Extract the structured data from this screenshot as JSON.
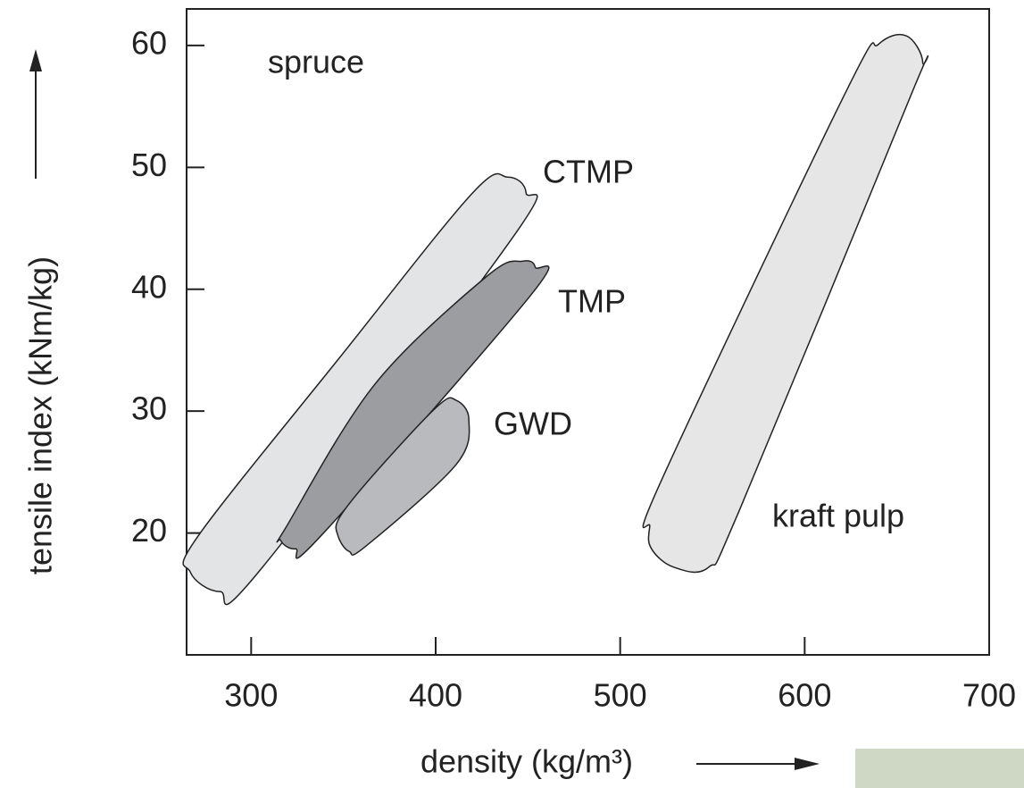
{
  "chart_data": {
    "type": "region",
    "title": "spruce",
    "x_label": "density (kg/m³)",
    "y_label": "tensile index (kNm/kg)",
    "xlim": [
      265,
      700
    ],
    "ylim": [
      10,
      63
    ],
    "xticks": [
      300,
      400,
      500,
      600,
      700
    ],
    "yticks": [
      20,
      30,
      40,
      50,
      60
    ],
    "grid": false,
    "series": [
      {
        "name": "CTMP",
        "color": "#e3e4e6",
        "x": [
          267,
          283,
          304,
          442,
          449,
          439,
          420,
          348,
          271
        ],
        "y": [
          16.8,
          15.2,
          16.8,
          44.3,
          47.9,
          49.2,
          47.9,
          34.4,
          19.7
        ]
      },
      {
        "name": "TMP",
        "color": "#9c9da1",
        "x": [
          316,
          324,
          338,
          452,
          454,
          447,
          428,
          367,
          319
        ],
        "y": [
          19.4,
          18.7,
          19.8,
          39.6,
          41.8,
          42.3,
          41.1,
          32.2,
          20.5
        ]
      },
      {
        "name": "GWD",
        "color": "#b9babd",
        "x": [
          347,
          353,
          362,
          411,
          418,
          411,
          401,
          367,
          348
        ],
        "y": [
          19.8,
          18.5,
          18.9,
          25.6,
          29.3,
          30.9,
          30.4,
          24.9,
          21.3
        ]
      },
      {
        "name": "kraft pulp",
        "color": "#e6e6e6",
        "x": [
          517,
          529,
          548,
          565,
          657,
          664,
          655,
          640,
          623,
          522,
          516
        ],
        "y": [
          18.7,
          17.2,
          17.2,
          22.0,
          55.7,
          58.6,
          60.8,
          60.1,
          56.4,
          24.2,
          20.5
        ]
      }
    ]
  }
}
